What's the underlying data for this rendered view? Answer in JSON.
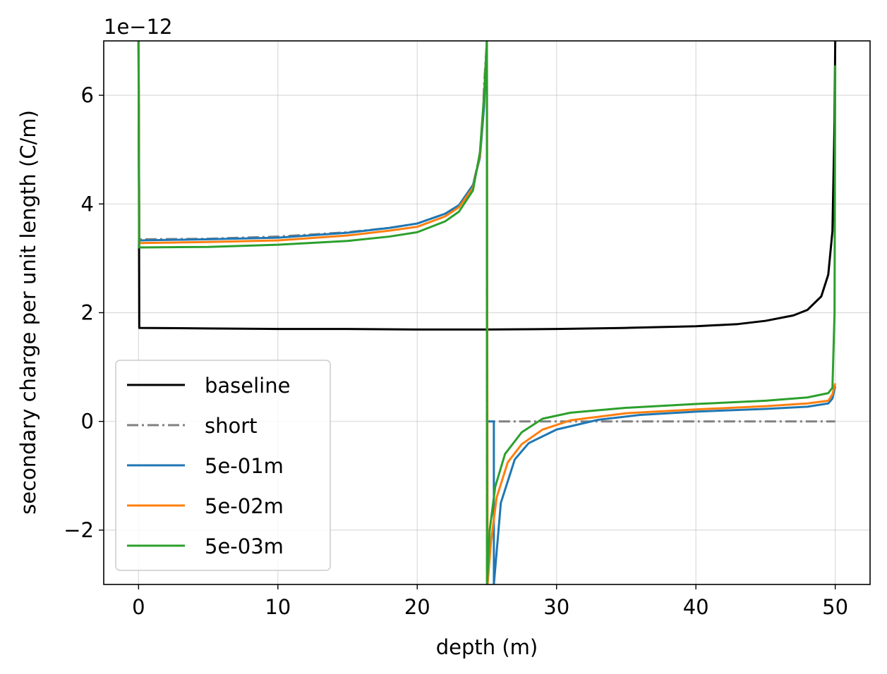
{
  "chart_data": {
    "type": "line",
    "xlabel": "depth (m)",
    "ylabel": "secondary charge per unit length (C/m)",
    "offset_text": "1e−12",
    "xlim": [
      -2.5,
      52.5
    ],
    "ylim": [
      -3,
      7
    ],
    "xticks": [
      0,
      10,
      20,
      30,
      40,
      50
    ],
    "yticks": [
      -2,
      0,
      2,
      4,
      6
    ],
    "ytick_labels": [
      "−2",
      "0",
      "2",
      "4",
      "6"
    ],
    "grid": true,
    "legend_position": "lower-left",
    "series": [
      {
        "name": "baseline",
        "color": "#000000",
        "dash": "solid",
        "points": [
          [
            0,
            7
          ],
          [
            0.05,
            1.72
          ],
          [
            5,
            1.71
          ],
          [
            10,
            1.7
          ],
          [
            15,
            1.7
          ],
          [
            20,
            1.69
          ],
          [
            25,
            1.69
          ],
          [
            30,
            1.7
          ],
          [
            35,
            1.72
          ],
          [
            40,
            1.75
          ],
          [
            43,
            1.79
          ],
          [
            45,
            1.85
          ],
          [
            47,
            1.95
          ],
          [
            48,
            2.05
          ],
          [
            49,
            2.3
          ],
          [
            49.5,
            2.7
          ],
          [
            49.8,
            3.5
          ],
          [
            49.95,
            5.5
          ],
          [
            50,
            7
          ]
        ]
      },
      {
        "name": "short",
        "color": "#808080",
        "dash": "dashdot",
        "points": [
          [
            0,
            7
          ],
          [
            0.05,
            3.35
          ],
          [
            5,
            3.36
          ],
          [
            10,
            3.4
          ],
          [
            15,
            3.48
          ],
          [
            18,
            3.56
          ],
          [
            20,
            3.64
          ],
          [
            22,
            3.82
          ],
          [
            23,
            3.97
          ],
          [
            24,
            4.35
          ],
          [
            24.5,
            4.9
          ],
          [
            24.7,
            5.5
          ],
          [
            24.8,
            6.2
          ],
          [
            25,
            7
          ],
          [
            25.01,
            -3
          ],
          [
            25.02,
            0
          ],
          [
            30,
            0
          ],
          [
            40,
            0
          ],
          [
            50,
            0
          ]
        ]
      },
      {
        "name": "5e-01m",
        "color": "#1f77b4",
        "dash": "solid",
        "points": [
          [
            0,
            7
          ],
          [
            0.05,
            3.33
          ],
          [
            5,
            3.35
          ],
          [
            10,
            3.38
          ],
          [
            15,
            3.47
          ],
          [
            18,
            3.56
          ],
          [
            20,
            3.64
          ],
          [
            22,
            3.82
          ],
          [
            23,
            3.98
          ],
          [
            24,
            4.35
          ],
          [
            24.5,
            4.85
          ],
          [
            24.8,
            5.8
          ],
          [
            25,
            7
          ],
          [
            25.02,
            0
          ],
          [
            25.5,
            0
          ],
          [
            25.5,
            -3
          ],
          [
            25.7,
            -2.4
          ],
          [
            26,
            -1.5
          ],
          [
            27,
            -0.7
          ],
          [
            28,
            -0.4
          ],
          [
            30,
            -0.15
          ],
          [
            33,
            0.03
          ],
          [
            36,
            0.12
          ],
          [
            40,
            0.18
          ],
          [
            45,
            0.23
          ],
          [
            48,
            0.27
          ],
          [
            49.5,
            0.33
          ],
          [
            49.8,
            0.42
          ],
          [
            50,
            0.65
          ]
        ]
      },
      {
        "name": "5e-02m",
        "color": "#ff7f0e",
        "dash": "solid",
        "points": [
          [
            0,
            7
          ],
          [
            0.05,
            3.28
          ],
          [
            5,
            3.3
          ],
          [
            10,
            3.33
          ],
          [
            15,
            3.42
          ],
          [
            18,
            3.51
          ],
          [
            20,
            3.58
          ],
          [
            22,
            3.77
          ],
          [
            23,
            3.94
          ],
          [
            24,
            4.3
          ],
          [
            24.5,
            4.9
          ],
          [
            24.8,
            6.0
          ],
          [
            25,
            7
          ],
          [
            25.05,
            -3
          ],
          [
            25.3,
            -2.2
          ],
          [
            25.7,
            -1.4
          ],
          [
            26.5,
            -0.75
          ],
          [
            27.5,
            -0.42
          ],
          [
            29,
            -0.15
          ],
          [
            31,
            0.02
          ],
          [
            35,
            0.15
          ],
          [
            40,
            0.22
          ],
          [
            45,
            0.28
          ],
          [
            48,
            0.33
          ],
          [
            49.5,
            0.38
          ],
          [
            49.8,
            0.5
          ],
          [
            50,
            0.7
          ]
        ]
      },
      {
        "name": "5e-03m",
        "color": "#2ca02c",
        "dash": "solid",
        "points": [
          [
            0,
            7
          ],
          [
            0.05,
            3.2
          ],
          [
            5,
            3.21
          ],
          [
            10,
            3.25
          ],
          [
            15,
            3.32
          ],
          [
            18,
            3.4
          ],
          [
            20,
            3.48
          ],
          [
            22,
            3.68
          ],
          [
            23,
            3.86
          ],
          [
            24,
            4.25
          ],
          [
            24.5,
            4.95
          ],
          [
            24.8,
            6.0
          ],
          [
            25,
            7
          ],
          [
            25.01,
            -3
          ],
          [
            25.2,
            -2.0
          ],
          [
            25.6,
            -1.2
          ],
          [
            26.3,
            -0.6
          ],
          [
            27.5,
            -0.2
          ],
          [
            29,
            0.05
          ],
          [
            31,
            0.16
          ],
          [
            35,
            0.25
          ],
          [
            40,
            0.32
          ],
          [
            45,
            0.38
          ],
          [
            48,
            0.44
          ],
          [
            49.5,
            0.52
          ],
          [
            49.8,
            0.62
          ],
          [
            49.95,
            2.0
          ],
          [
            50,
            6.55
          ]
        ]
      }
    ]
  }
}
